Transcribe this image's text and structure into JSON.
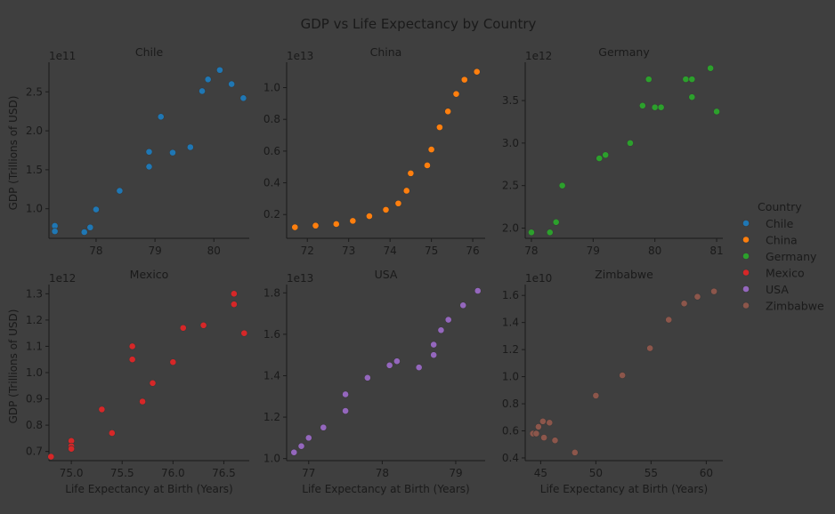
{
  "chart_data": {
    "type": "scatter",
    "title": "GDP vs Life Expectancy by Country",
    "xlabel": "Life Expectancy at Birth (Years)",
    "ylabel": "GDP (Trillions of USD)",
    "legend": {
      "title": "Country",
      "placement": "right"
    },
    "panels": [
      {
        "name": "Chile",
        "color": "#1f77b4",
        "offset": "1e11",
        "xlim": [
          77.2,
          80.6
        ],
        "ylim": [
          0.62,
          2.88
        ],
        "xticks": [
          78,
          79,
          80
        ],
        "yticks": [
          1.0,
          1.5,
          2.0,
          2.5
        ],
        "points": [
          [
            77.3,
            0.78
          ],
          [
            77.3,
            0.71
          ],
          [
            77.8,
            0.7
          ],
          [
            77.9,
            0.76
          ],
          [
            78.0,
            0.99
          ],
          [
            78.4,
            1.23
          ],
          [
            78.9,
            1.54
          ],
          [
            78.9,
            1.73
          ],
          [
            79.1,
            2.18
          ],
          [
            79.3,
            1.72
          ],
          [
            79.6,
            1.79
          ],
          [
            79.8,
            2.51
          ],
          [
            79.9,
            2.66
          ],
          [
            80.1,
            2.78
          ],
          [
            80.3,
            2.6
          ],
          [
            80.5,
            2.42
          ]
        ]
      },
      {
        "name": "China",
        "color": "#ff7f0e",
        "offset": "1e13",
        "xlim": [
          71.5,
          76.3
        ],
        "ylim": [
          0.05,
          1.16
        ],
        "xticks": [
          72,
          73,
          74,
          75,
          76
        ],
        "yticks": [
          0.2,
          0.4,
          0.6,
          0.8,
          1.0
        ],
        "points": [
          [
            71.7,
            0.12
          ],
          [
            72.2,
            0.13
          ],
          [
            72.7,
            0.14
          ],
          [
            73.1,
            0.16
          ],
          [
            73.5,
            0.19
          ],
          [
            73.9,
            0.23
          ],
          [
            74.2,
            0.27
          ],
          [
            74.4,
            0.35
          ],
          [
            74.5,
            0.46
          ],
          [
            74.9,
            0.51
          ],
          [
            75.0,
            0.61
          ],
          [
            75.2,
            0.75
          ],
          [
            75.4,
            0.85
          ],
          [
            75.6,
            0.96
          ],
          [
            75.8,
            1.05
          ],
          [
            76.1,
            1.1
          ]
        ]
      },
      {
        "name": "Germany",
        "color": "#2ca02c",
        "offset": "1e12",
        "xlim": [
          77.9,
          81.1
        ],
        "ylim": [
          1.88,
          3.95
        ],
        "xticks": [
          78,
          79,
          80,
          81
        ],
        "yticks": [
          2.0,
          2.5,
          3.0,
          3.5
        ],
        "points": [
          [
            78.0,
            1.95
          ],
          [
            78.3,
            1.95
          ],
          [
            78.4,
            2.07
          ],
          [
            78.5,
            2.5
          ],
          [
            79.1,
            2.82
          ],
          [
            79.2,
            2.86
          ],
          [
            79.6,
            3.0
          ],
          [
            79.8,
            3.44
          ],
          [
            79.9,
            3.75
          ],
          [
            80.0,
            3.42
          ],
          [
            80.1,
            3.42
          ],
          [
            80.5,
            3.75
          ],
          [
            80.6,
            3.75
          ],
          [
            80.6,
            3.54
          ],
          [
            80.9,
            3.88
          ],
          [
            81.0,
            3.37
          ]
        ]
      },
      {
        "name": "Mexico",
        "color": "#d62728",
        "offset": "1e12",
        "xlim": [
          74.78,
          76.75
        ],
        "ylim": [
          0.665,
          1.335
        ],
        "xticks": [
          75.0,
          75.5,
          76.0,
          76.5
        ],
        "yticks": [
          0.7,
          0.8,
          0.9,
          1.0,
          1.1,
          1.2,
          1.3
        ],
        "points": [
          [
            74.8,
            0.68
          ],
          [
            75.0,
            0.74
          ],
          [
            75.0,
            0.72
          ],
          [
            75.0,
            0.71
          ],
          [
            75.3,
            0.86
          ],
          [
            75.4,
            0.77
          ],
          [
            75.6,
            1.1
          ],
          [
            75.6,
            1.05
          ],
          [
            75.7,
            0.89
          ],
          [
            75.8,
            0.96
          ],
          [
            76.0,
            1.04
          ],
          [
            76.1,
            1.17
          ],
          [
            76.3,
            1.18
          ],
          [
            76.6,
            1.3
          ],
          [
            76.6,
            1.26
          ],
          [
            76.7,
            1.15
          ]
        ]
      },
      {
        "name": "USA",
        "color": "#9467bd",
        "offset": "1e13",
        "xlim": [
          76.7,
          79.4
        ],
        "ylim": [
          0.99,
          1.84
        ],
        "xticks": [
          77,
          78,
          79
        ],
        "yticks": [
          1.0,
          1.2,
          1.4,
          1.6,
          1.8
        ],
        "points": [
          [
            76.8,
            1.03
          ],
          [
            76.9,
            1.06
          ],
          [
            77.0,
            1.1
          ],
          [
            77.2,
            1.15
          ],
          [
            77.5,
            1.23
          ],
          [
            77.5,
            1.31
          ],
          [
            77.8,
            1.39
          ],
          [
            78.1,
            1.45
          ],
          [
            78.2,
            1.47
          ],
          [
            78.5,
            1.44
          ],
          [
            78.7,
            1.5
          ],
          [
            78.7,
            1.55
          ],
          [
            78.8,
            1.62
          ],
          [
            78.9,
            1.67
          ],
          [
            79.1,
            1.74
          ],
          [
            79.3,
            1.81
          ]
        ]
      },
      {
        "name": "Zimbabwe",
        "color": "#8c564b",
        "offset": "1e10",
        "xlim": [
          43.6,
          61.5
        ],
        "ylim": [
          0.38,
          1.68
        ],
        "xticks": [
          45,
          50,
          55,
          60
        ],
        "yticks": [
          0.4,
          0.6,
          0.8,
          1.0,
          1.2,
          1.4,
          1.6
        ],
        "points": [
          [
            44.3,
            0.58
          ],
          [
            44.6,
            0.58
          ],
          [
            44.8,
            0.63
          ],
          [
            45.2,
            0.67
          ],
          [
            45.3,
            0.55
          ],
          [
            45.8,
            0.66
          ],
          [
            46.3,
            0.53
          ],
          [
            48.1,
            0.44
          ],
          [
            50.0,
            0.86
          ],
          [
            52.4,
            1.01
          ],
          [
            54.9,
            1.21
          ],
          [
            56.6,
            1.42
          ],
          [
            58.0,
            1.54
          ],
          [
            59.2,
            1.59
          ],
          [
            60.7,
            1.63
          ]
        ]
      }
    ]
  }
}
